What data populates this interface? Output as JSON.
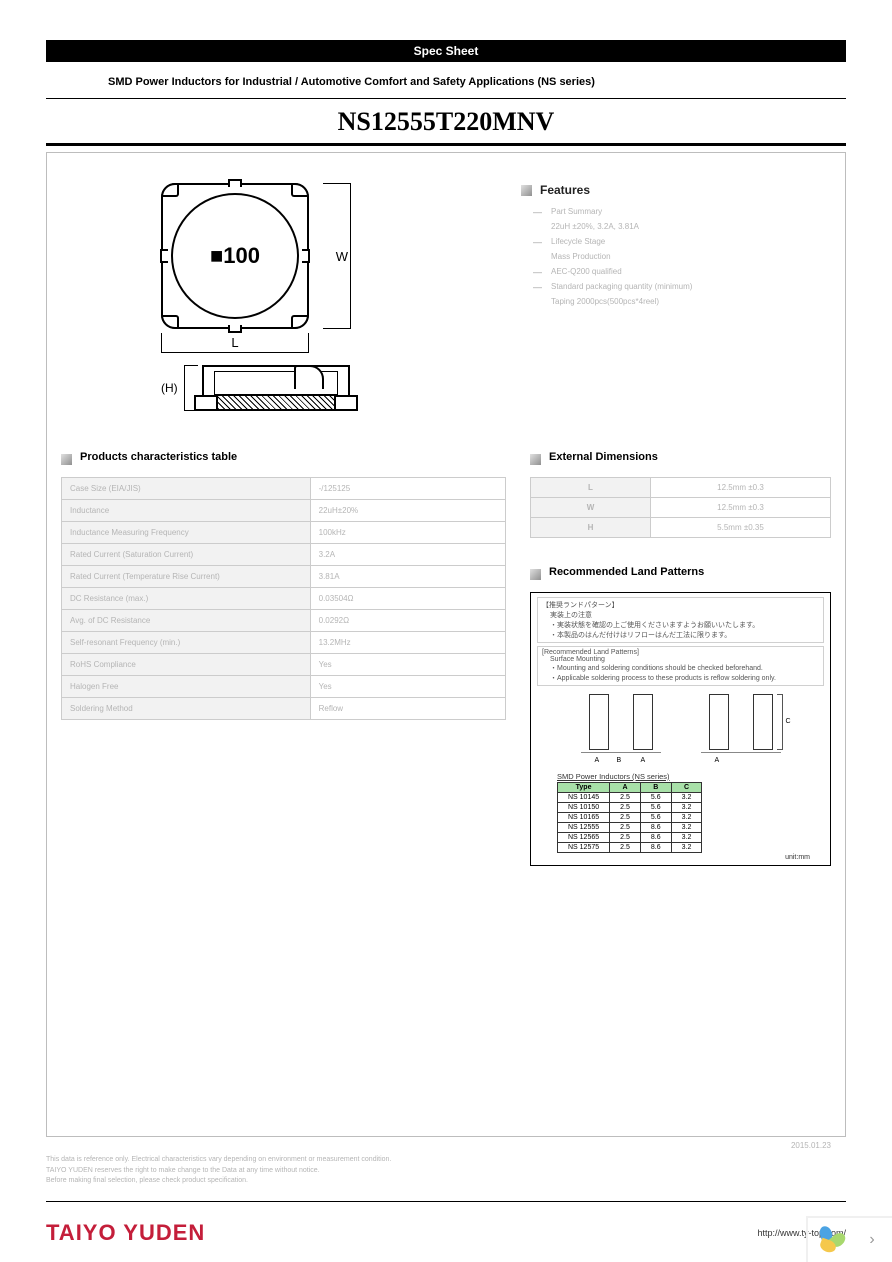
{
  "header": {
    "spec_sheet": "Spec Sheet",
    "subtitle": "SMD Power Inductors for Industrial / Automotive Comfort and Safety Applications (NS series)",
    "part_number": "NS12555T220MNV"
  },
  "drawing": {
    "marking": "■100",
    "dim_w": "W",
    "dim_l": "L",
    "dim_h": "(H)"
  },
  "features": {
    "heading": "Features",
    "items": [
      {
        "head": "Part Summary",
        "sub": "22uH ±20%, 3.2A, 3.81A"
      },
      {
        "head": "Lifecycle Stage",
        "sub": "Mass Production"
      },
      {
        "head": "AEC-Q200 qualified",
        "sub": ""
      },
      {
        "head": "Standard packaging quantity (minimum)",
        "sub": "Taping 2000pcs(500pcs*4reel)"
      }
    ]
  },
  "characteristics": {
    "heading": "Products characteristics table",
    "rows": [
      {
        "label": "Case Size (EIA/JIS)",
        "value": "-/125125"
      },
      {
        "label": "Inductance",
        "value": "22uH±20%"
      },
      {
        "label": "Inductance Measuring Frequency",
        "value": "100kHz"
      },
      {
        "label": "Rated Current (Saturation Current)",
        "value": "3.2A"
      },
      {
        "label": "Rated Current (Temperature Rise Current)",
        "value": "3.81A"
      },
      {
        "label": "DC Resistance (max.)",
        "value": "0.03504Ω"
      },
      {
        "label": "Avg. of DC Resistance",
        "value": "0.0292Ω"
      },
      {
        "label": "Self-resonant Frequency (min.)",
        "value": "13.2MHz"
      },
      {
        "label": "RoHS Compliance",
        "value": "Yes"
      },
      {
        "label": "Halogen Free",
        "value": "Yes"
      },
      {
        "label": "Soldering Method",
        "value": "Reflow"
      }
    ]
  },
  "dimensions": {
    "heading": "External Dimensions",
    "rows": [
      {
        "label": "L",
        "value": "12.5mm ±0.3"
      },
      {
        "label": "W",
        "value": "12.5mm ±0.3"
      },
      {
        "label": "H",
        "value": "5.5mm ±0.35"
      }
    ]
  },
  "land_patterns": {
    "heading": "Recommended Land Patterns",
    "jp_title": "【推奨ランドパターン】",
    "jp_lines": [
      "実装上の注意",
      "・実装状態を確認の上ご使用くださいますようお願いいたします。",
      "・本製品のはんだ付けはリフローはんだ工法に限ります。"
    ],
    "en_title": "[Recommended Land Patterns]",
    "en_lines": [
      "Surface Mounting",
      "・Mounting and soldering conditions should be checked beforehand.",
      "・Applicable soldering process to these products is reflow soldering only."
    ],
    "labels": {
      "a": "A",
      "b": "B",
      "c": "C"
    },
    "series_label": "SMD Power Inductors (NS series)",
    "table": {
      "columns": [
        "Type",
        "A",
        "B",
        "C"
      ],
      "rows": [
        [
          "NS 10145",
          "2.5",
          "5.6",
          "3.2"
        ],
        [
          "NS 10150",
          "2.5",
          "5.6",
          "3.2"
        ],
        [
          "NS 10165",
          "2.5",
          "5.6",
          "3.2"
        ],
        [
          "NS 12555",
          "2.5",
          "8.6",
          "3.2"
        ],
        [
          "NS 12565",
          "2.5",
          "8.6",
          "3.2"
        ],
        [
          "NS 12575",
          "2.5",
          "8.6",
          "3.2"
        ]
      ]
    },
    "unit": "unit:mm"
  },
  "date": "2015.01.23",
  "disclaimer": [
    "This data is reference only. Electrical characteristics vary depending on environment or measurement condition.",
    "TAIYO YUDEN reserves the right to make change to the Data at any time without notice.",
    "Before making final selection, please check product specification."
  ],
  "footer": {
    "brand": "TAIYO YUDEN",
    "url": "http://www.ty-top.com/"
  },
  "colors": {
    "accent": "#c41e3a",
    "table_header_bg": "#f2f2f2",
    "type_table_header": "#a8e0a8"
  }
}
